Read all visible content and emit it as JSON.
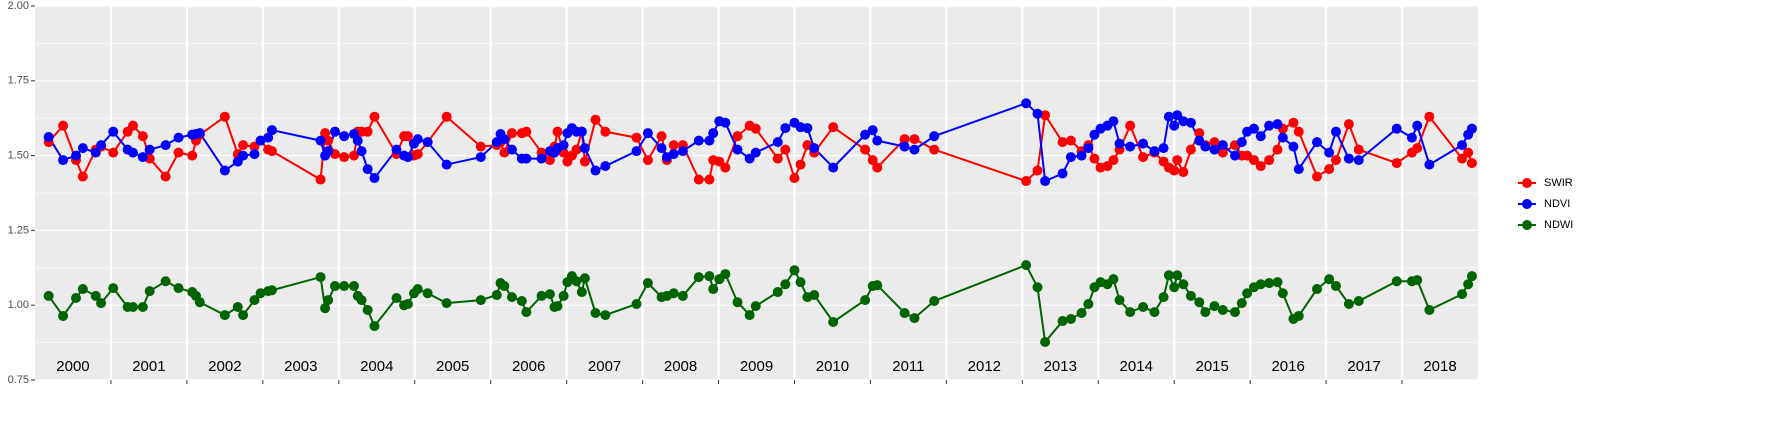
{
  "chart_data": {
    "type": "line",
    "legend": "right",
    "grid": true,
    "xlim": [
      2000,
      2019
    ],
    "ylim": [
      0.75,
      2.0
    ],
    "yticks": [
      {
        "value": 0.75,
        "label": "0.75"
      },
      {
        "value": 1.0,
        "label": "1.00"
      },
      {
        "value": 1.25,
        "label": "1.25"
      },
      {
        "value": 1.5,
        "label": "1.50"
      },
      {
        "value": 1.75,
        "label": "1.75"
      },
      {
        "value": 2.0,
        "label": "2.00"
      }
    ],
    "x_grid": [
      2001,
      2002,
      2003,
      2004,
      2005,
      2006,
      2007,
      2008,
      2009,
      2010,
      2011,
      2012,
      2013,
      2014,
      2015,
      2016,
      2017,
      2018
    ],
    "xticks": [
      {
        "value": 2000.5,
        "label": "2000"
      },
      {
        "value": 2001.5,
        "label": "2001"
      },
      {
        "value": 2002.5,
        "label": "2002"
      },
      {
        "value": 2003.5,
        "label": "2003"
      },
      {
        "value": 2004.5,
        "label": "2004"
      },
      {
        "value": 2005.5,
        "label": "2005"
      },
      {
        "value": 2006.5,
        "label": "2006"
      },
      {
        "value": 2007.5,
        "label": "2007"
      },
      {
        "value": 2008.5,
        "label": "2008"
      },
      {
        "value": 2009.5,
        "label": "2009"
      },
      {
        "value": 2010.5,
        "label": "2010"
      },
      {
        "value": 2011.5,
        "label": "2011"
      },
      {
        "value": 2012.5,
        "label": "2012"
      },
      {
        "value": 2013.5,
        "label": "2013"
      },
      {
        "value": 2014.5,
        "label": "2014"
      },
      {
        "value": 2015.5,
        "label": "2015"
      },
      {
        "value": 2016.5,
        "label": "2016"
      },
      {
        "value": 2017.5,
        "label": "2017"
      },
      {
        "value": 2018.5,
        "label": "2018"
      }
    ],
    "x": [
      2000.18,
      2000.37,
      2000.54,
      2000.63,
      2000.8,
      2000.87,
      2001.03,
      2001.22,
      2001.29,
      2001.42,
      2001.51,
      2001.72,
      2001.89,
      2002.07,
      2002.12,
      2002.17,
      2002.5,
      2002.67,
      2002.74,
      2002.89,
      2002.97,
      2003.07,
      2003.12,
      2003.76,
      2003.82,
      2003.86,
      2003.95,
      2004.07,
      2004.2,
      2004.25,
      2004.3,
      2004.38,
      2004.47,
      2004.76,
      2004.86,
      2004.91,
      2004.99,
      2005.04,
      2005.17,
      2005.42,
      2005.87,
      2006.08,
      2006.13,
      2006.18,
      2006.28,
      2006.41,
      2006.47,
      2006.67,
      2006.78,
      2006.84,
      2006.88,
      2006.96,
      2007.01,
      2007.07,
      2007.13,
      2007.2,
      2007.24,
      2007.38,
      2007.51,
      2007.92,
      2008.07,
      2008.25,
      2008.32,
      2008.41,
      2008.53,
      2008.74,
      2008.88,
      2008.93,
      2009.01,
      2009.09,
      2009.25,
      2009.41,
      2009.49,
      2009.78,
      2009.88,
      2010.0,
      2010.08,
      2010.17,
      2010.26,
      2010.51,
      2010.93,
      2011.03,
      2011.09,
      2011.45,
      2011.58,
      2011.84,
      2013.05,
      2013.2,
      2013.3,
      2013.53,
      2013.64,
      2013.78,
      2013.87,
      2013.95,
      2014.03,
      2014.12,
      2014.2,
      2014.28,
      2014.42,
      2014.59,
      2014.74,
      2014.86,
      2014.93,
      2015.0,
      2015.04,
      2015.12,
      2015.22,
      2015.33,
      2015.41,
      2015.53,
      2015.64,
      2015.8,
      2015.89,
      2015.96,
      2016.05,
      2016.14,
      2016.25,
      2016.36,
      2016.43,
      2016.57,
      2016.64,
      2016.88,
      2017.04,
      2017.13,
      2017.3,
      2017.43,
      2017.93,
      2018.13,
      2018.2,
      2018.36,
      2018.79,
      2018.87,
      2018.92
    ],
    "series": [
      {
        "name": "SWIR",
        "color": "#ff0000",
        "values": [
          1.545,
          1.6,
          1.485,
          1.43,
          1.52,
          1.53,
          1.51,
          1.58,
          1.6,
          1.565,
          1.49,
          1.43,
          1.51,
          1.5,
          1.55,
          1.57,
          1.63,
          1.505,
          1.535,
          1.53,
          1.55,
          1.52,
          1.515,
          1.42,
          1.575,
          1.55,
          1.505,
          1.495,
          1.5,
          1.58,
          1.58,
          1.58,
          1.63,
          1.505,
          1.565,
          1.565,
          1.5,
          1.505,
          1.545,
          1.63,
          1.53,
          1.535,
          1.545,
          1.51,
          1.575,
          1.575,
          1.58,
          1.51,
          1.485,
          1.53,
          1.58,
          1.51,
          1.48,
          1.5,
          1.52,
          1.58,
          1.48,
          1.62,
          1.58,
          1.56,
          1.485,
          1.565,
          1.485,
          1.535,
          1.535,
          1.42,
          1.42,
          1.485,
          1.48,
          1.46,
          1.565,
          1.6,
          1.59,
          1.49,
          1.52,
          1.425,
          1.47,
          1.535,
          1.51,
          1.595,
          1.52,
          1.485,
          1.46,
          1.555,
          1.555,
          1.52,
          1.415,
          1.45,
          1.635,
          1.545,
          1.55,
          1.515,
          1.535,
          1.49,
          1.46,
          1.465,
          1.485,
          1.52,
          1.6,
          1.495,
          1.51,
          1.48,
          1.46,
          1.45,
          1.485,
          1.445,
          1.52,
          1.575,
          1.535,
          1.545,
          1.51,
          1.535,
          1.5,
          1.5,
          1.485,
          1.465,
          1.485,
          1.52,
          1.59,
          1.61,
          1.58,
          1.43,
          1.455,
          1.485,
          1.605,
          1.52,
          1.475,
          1.51,
          1.525,
          1.63,
          1.49,
          1.51,
          1.475
        ]
      },
      {
        "name": "NDVI",
        "color": "#0000ff",
        "values": [
          1.562,
          1.485,
          1.5,
          1.525,
          1.51,
          1.535,
          1.58,
          1.52,
          1.51,
          1.495,
          1.52,
          1.535,
          1.56,
          1.57,
          1.572,
          1.575,
          1.45,
          1.48,
          1.5,
          1.505,
          1.55,
          1.56,
          1.585,
          1.55,
          1.5,
          1.515,
          1.58,
          1.565,
          1.572,
          1.55,
          1.515,
          1.455,
          1.425,
          1.52,
          1.5,
          1.495,
          1.54,
          1.555,
          1.545,
          1.47,
          1.495,
          1.545,
          1.572,
          1.555,
          1.52,
          1.49,
          1.49,
          1.49,
          1.515,
          1.51,
          1.525,
          1.535,
          1.575,
          1.592,
          1.58,
          1.58,
          1.525,
          1.45,
          1.465,
          1.515,
          1.575,
          1.525,
          1.495,
          1.505,
          1.515,
          1.55,
          1.55,
          1.575,
          1.615,
          1.61,
          1.52,
          1.49,
          1.51,
          1.545,
          1.592,
          1.61,
          1.595,
          1.592,
          1.525,
          1.46,
          1.57,
          1.585,
          1.55,
          1.53,
          1.52,
          1.565,
          1.675,
          1.64,
          1.415,
          1.44,
          1.495,
          1.5,
          1.525,
          1.57,
          1.59,
          1.6,
          1.615,
          1.54,
          1.53,
          1.54,
          1.515,
          1.525,
          1.63,
          1.6,
          1.635,
          1.615,
          1.61,
          1.55,
          1.53,
          1.52,
          1.535,
          1.5,
          1.545,
          1.58,
          1.59,
          1.565,
          1.6,
          1.605,
          1.56,
          1.53,
          1.455,
          1.545,
          1.51,
          1.58,
          1.49,
          1.485,
          1.59,
          1.56,
          1.6,
          1.47,
          1.535,
          1.57,
          1.59
        ]
      },
      {
        "name": "NDWI",
        "color": "#006400",
        "values": [
          1.031,
          0.964,
          1.024,
          1.054,
          1.031,
          1.007,
          1.057,
          0.994,
          0.994,
          0.994,
          1.047,
          1.08,
          1.057,
          1.044,
          1.031,
          1.01,
          0.967,
          0.994,
          0.967,
          1.017,
          1.04,
          1.047,
          1.05,
          1.094,
          0.99,
          1.017,
          1.064,
          1.064,
          1.064,
          1.031,
          1.017,
          0.984,
          0.93,
          1.024,
          1.0,
          1.004,
          1.04,
          1.054,
          1.04,
          1.007,
          1.017,
          1.034,
          1.074,
          1.064,
          1.027,
          1.014,
          0.977,
          1.031,
          1.037,
          0.994,
          0.997,
          1.031,
          1.077,
          1.097,
          1.08,
          1.044,
          1.09,
          0.974,
          0.967,
          1.004,
          1.074,
          1.027,
          1.031,
          1.04,
          1.031,
          1.094,
          1.097,
          1.054,
          1.087,
          1.104,
          1.01,
          0.967,
          0.997,
          1.044,
          1.07,
          1.117,
          1.077,
          1.027,
          1.034,
          0.944,
          1.017,
          1.064,
          1.067,
          0.974,
          0.957,
          1.014,
          1.134,
          1.06,
          0.877,
          0.947,
          0.954,
          0.974,
          1.004,
          1.06,
          1.077,
          1.07,
          1.087,
          1.017,
          0.977,
          0.994,
          0.977,
          1.027,
          1.1,
          1.06,
          1.1,
          1.07,
          1.031,
          1.01,
          0.977,
          0.997,
          0.984,
          0.977,
          1.007,
          1.04,
          1.06,
          1.07,
          1.074,
          1.077,
          1.04,
          0.954,
          0.964,
          1.054,
          1.087,
          1.064,
          1.004,
          1.014,
          1.08,
          1.08,
          1.084,
          0.984,
          1.037,
          1.07,
          1.097
        ]
      }
    ]
  }
}
